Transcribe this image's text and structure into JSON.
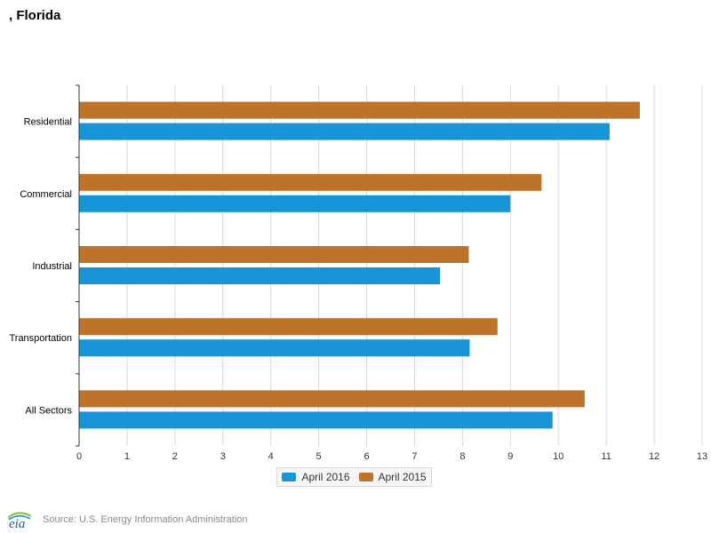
{
  "header": {
    "title": ", Florida"
  },
  "legend": {
    "items": [
      {
        "label": "April 2016",
        "color": "#1795d6"
      },
      {
        "label": "April 2015",
        "color": "#bd732a"
      }
    ]
  },
  "footer": {
    "logo_text": "eia",
    "source": "Source: U.S. Energy Information Administration"
  },
  "chart_data": {
    "type": "bar",
    "orientation": "horizontal",
    "title": ", Florida",
    "categories": [
      "Residential",
      "Commercial",
      "Industrial",
      "Transportation",
      "All Sectors"
    ],
    "series": [
      {
        "name": "April 2015",
        "color": "#bd732a",
        "values": [
          11.7,
          9.65,
          8.13,
          8.73,
          10.55
        ]
      },
      {
        "name": "April 2016",
        "color": "#1795d6",
        "values": [
          11.07,
          9.0,
          7.53,
          8.15,
          9.88
        ]
      }
    ],
    "xlim": [
      0,
      13
    ],
    "xticks": [
      "0",
      "1",
      "2",
      "3",
      "4",
      "5",
      "6",
      "7",
      "8",
      "9",
      "10",
      "11",
      "12",
      "13"
    ],
    "grid": true,
    "legend_position": "bottom-center"
  }
}
